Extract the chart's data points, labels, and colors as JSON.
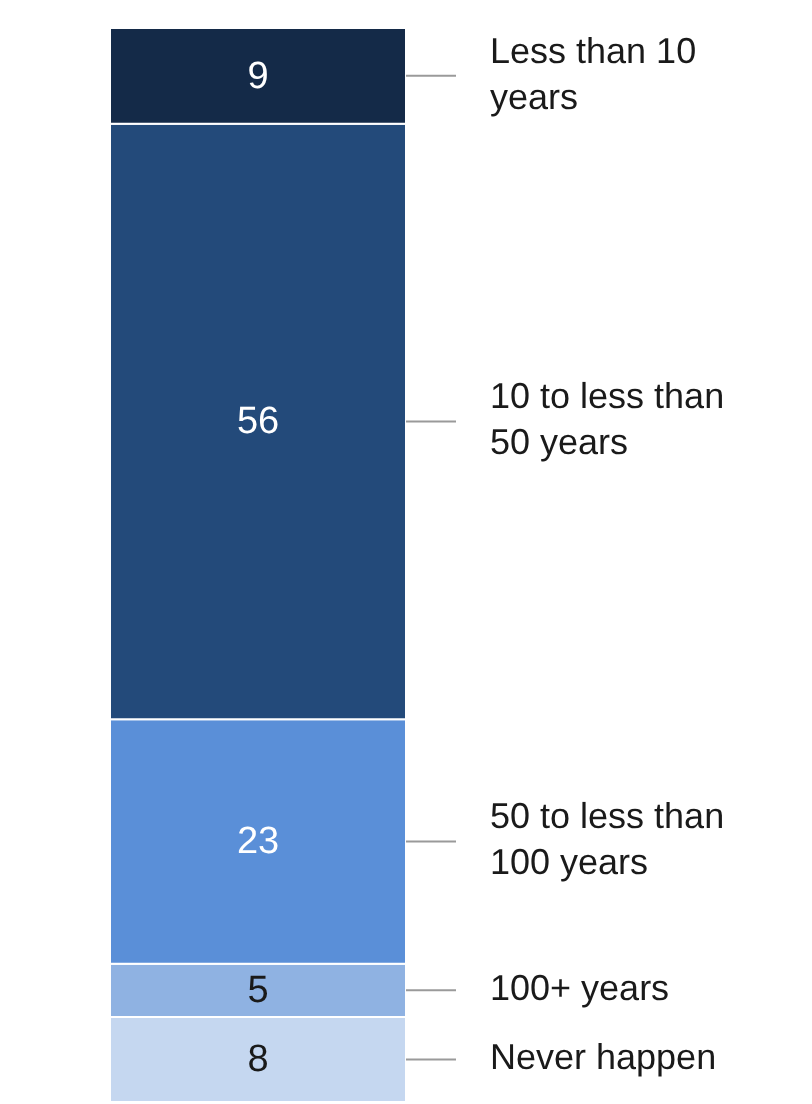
{
  "chart_data": {
    "type": "bar",
    "stacked": true,
    "categories": [
      null
    ],
    "data_labels": true,
    "tick_labels": false,
    "series": [
      {
        "name": "Never happen",
        "color": "#c5d7f0",
        "values": [
          8
        ]
      },
      {
        "name": "100+ years",
        "color": "#8fb2e2",
        "values": [
          5
        ]
      },
      {
        "name": "50 to less than 100 years",
        "color": "#5a8fd8",
        "values": [
          23
        ]
      },
      {
        "name": "10 to less than 50 years",
        "color": "#234a7a",
        "values": [
          56
        ]
      },
      {
        "name": "Less than 10 years",
        "color": "#142a48",
        "values": [
          9
        ]
      }
    ]
  }
}
